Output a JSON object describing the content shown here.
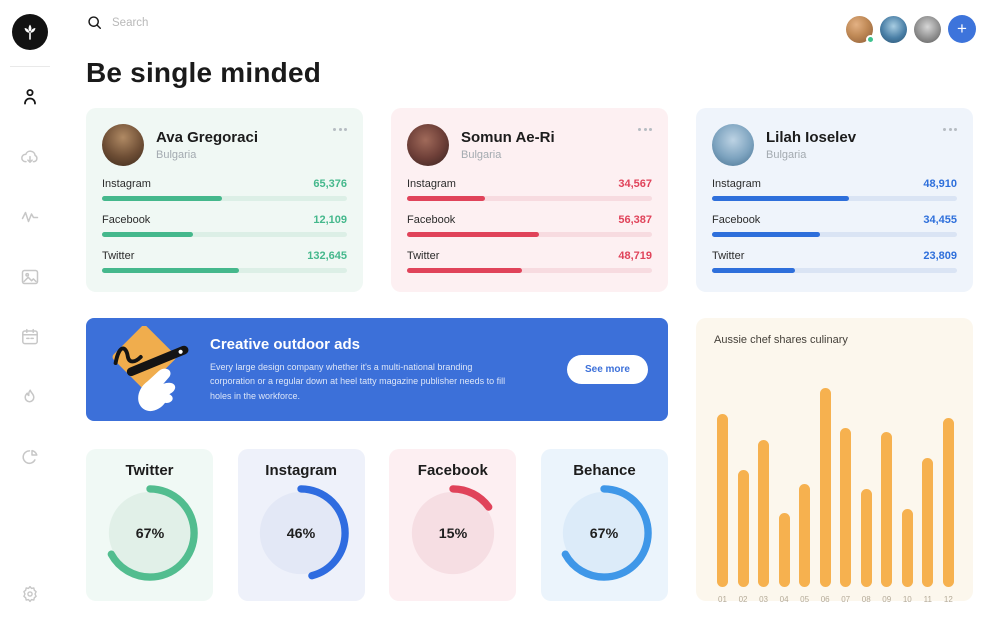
{
  "page": {
    "title": "Be single minded"
  },
  "topbar": {
    "search_placeholder": "Search",
    "search_icon": "magnifier-icon",
    "avatars": [
      {
        "online": true
      },
      {
        "online": false
      },
      {
        "online": false
      }
    ],
    "add_button_glyph": "+",
    "add_button_color": "#3d74db"
  },
  "sidebar": {
    "logo_icon": "sprout-logo-icon",
    "items": [
      {
        "icon": "user-profile-icon",
        "active": true
      },
      {
        "icon": "cloud-download-icon",
        "active": false
      },
      {
        "icon": "activity-icon",
        "active": false
      },
      {
        "icon": "image-icon",
        "active": false
      },
      {
        "icon": "calendar-icon",
        "active": false
      },
      {
        "icon": "fire-icon",
        "active": false
      },
      {
        "icon": "pie-chart-icon",
        "active": false
      }
    ],
    "bottom_icon": "settings-icon"
  },
  "profiles": [
    {
      "name": "Ava Gregoraci",
      "country": "Bulgaria",
      "card_bg": "#F0F8F4",
      "accent": "#45B88C",
      "track": "#DCEFE6",
      "stats": [
        {
          "label": "Instagram",
          "value": "65,376",
          "pct": 49
        },
        {
          "label": "Facebook",
          "value": "12,109",
          "pct": 37
        },
        {
          "label": "Twitter",
          "value": "132,645",
          "pct": 56
        }
      ]
    },
    {
      "name": "Somun Ae-Ri",
      "country": "Bulgaria",
      "card_bg": "#FDF0F2",
      "accent": "#E0435A",
      "track": "#F7DBE0",
      "stats": [
        {
          "label": "Instagram",
          "value": "34,567",
          "pct": 32
        },
        {
          "label": "Facebook",
          "value": "56,387",
          "pct": 54
        },
        {
          "label": "Twitter",
          "value": "48,719",
          "pct": 47
        }
      ]
    },
    {
      "name": "Lilah Ioselev",
      "country": "Bulgaria",
      "card_bg": "#EFF4FB",
      "accent": "#2E6FDB",
      "track": "#DAE4F4",
      "stats": [
        {
          "label": "Instagram",
          "value": "48,910",
          "pct": 56
        },
        {
          "label": "Facebook",
          "value": "34,455",
          "pct": 44
        },
        {
          "label": "Twitter",
          "value": "23,809",
          "pct": 34
        }
      ]
    }
  ],
  "banner": {
    "bg": "#3C70D9",
    "title": "Creative outdoor ads",
    "body": "Every large design company whether it's a multi-national branding corporation or a regular down at heel tatty magazine publisher needs to fill holes in the workforce.",
    "button_label": "See more",
    "illustration": "hand-drawing-marker-illustration"
  },
  "gauges": [
    {
      "label": "Twitter",
      "percent": 67,
      "ring": "#52BD8F",
      "card_bg": "#F0F9F5",
      "inner_bg": "#E1F0E8"
    },
    {
      "label": "Instagram",
      "percent": 46,
      "ring": "#2F6CE0",
      "card_bg": "#EEF1FA",
      "inner_bg": "#E3E8F6"
    },
    {
      "label": "Facebook",
      "percent": 15,
      "ring": "#E0435A",
      "card_bg": "#FDEFF2",
      "inner_bg": "#F6DEE3"
    },
    {
      "label": "Behance",
      "percent": 67,
      "ring": "#3F97E8",
      "card_bg": "#EBF4FC",
      "inner_bg": "#DCEBF9"
    }
  ],
  "chart_data": {
    "type": "bar",
    "title": "Aussie chef shares culinary",
    "categories": [
      "01",
      "02",
      "03",
      "04",
      "05",
      "06",
      "07",
      "08",
      "09",
      "10",
      "11",
      "12"
    ],
    "values": [
      87,
      59,
      74,
      37,
      52,
      100,
      80,
      49,
      78,
      39,
      65,
      85
    ],
    "value_unit": "percent_of_max_bar",
    "bar_color": "#F6B14F",
    "card_bg": "#FCF7ED",
    "xlabel": "",
    "ylabel": "",
    "grid": false,
    "legend": false
  }
}
